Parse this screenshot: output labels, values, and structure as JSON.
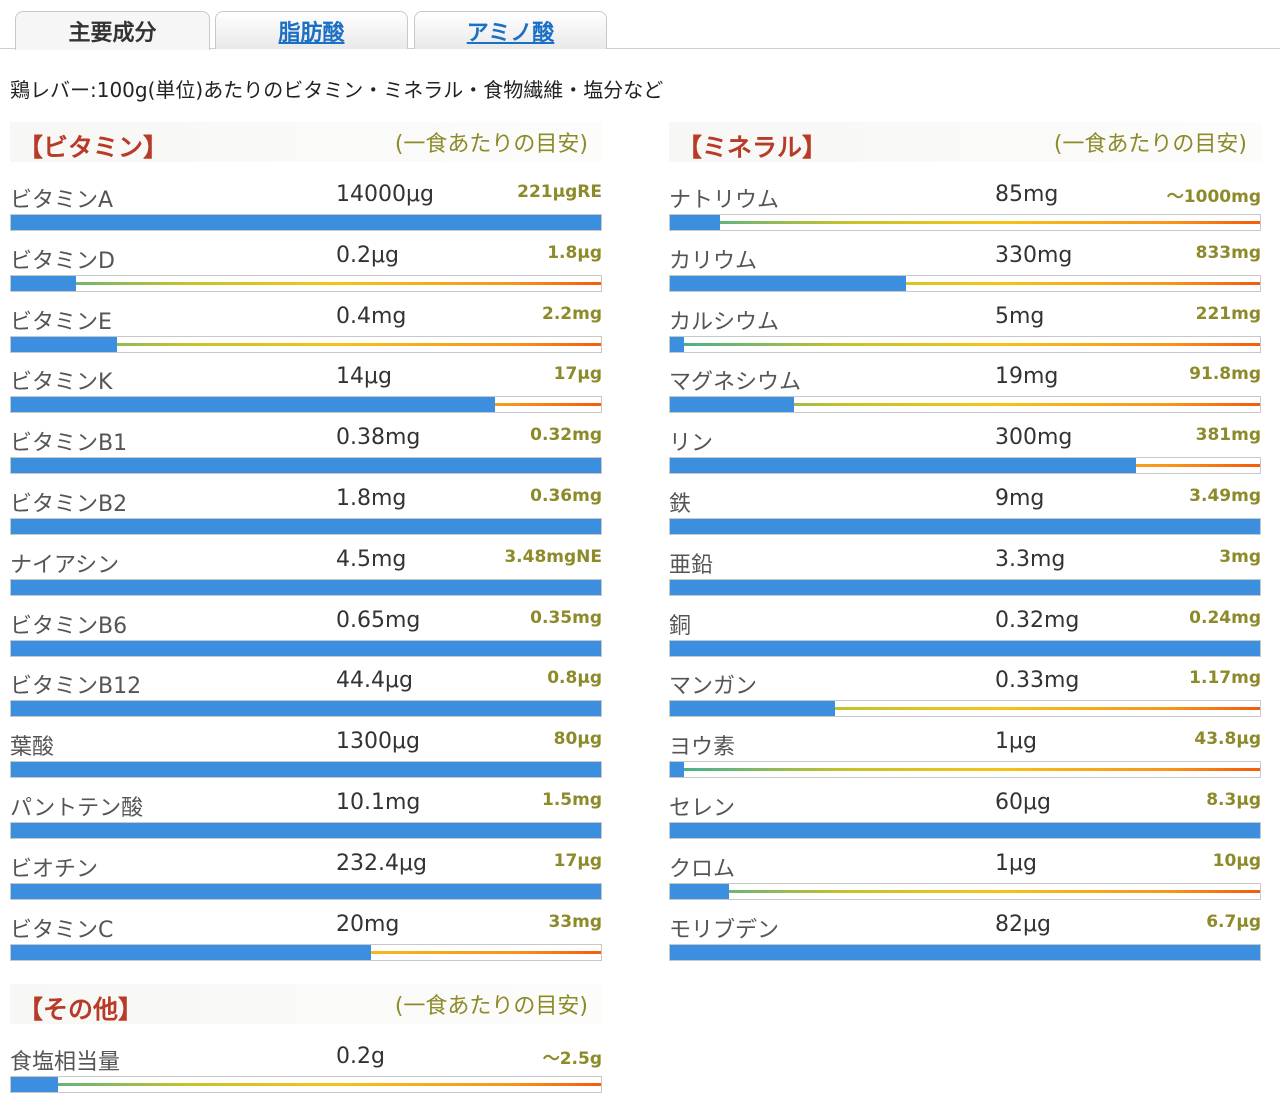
{
  "tabs": [
    {
      "label": "主要成分",
      "active": true
    },
    {
      "label": "脂肪酸",
      "active": false
    },
    {
      "label": "アミノ酸",
      "active": false
    }
  ],
  "intro": "鶏レバー:100g(単位)あたりのビタミン・ミネラル・食物繊維・塩分など",
  "sections": {
    "vitamin": {
      "title": "【ビタミン】",
      "note": "(一食あたりの目安)",
      "items": [
        {
          "name": "ビタミンA",
          "amount": "14000μg",
          "ref": "221μgRE",
          "fill": 1.0
        },
        {
          "name": "ビタミンD",
          "amount": "0.2μg",
          "ref": "1.8μg",
          "fill": 0.11
        },
        {
          "name": "ビタミンE",
          "amount": "0.4mg",
          "ref": "2.2mg",
          "fill": 0.18
        },
        {
          "name": "ビタミンK",
          "amount": "14μg",
          "ref": "17μg",
          "fill": 0.82
        },
        {
          "name": "ビタミンB1",
          "amount": "0.38mg",
          "ref": "0.32mg",
          "fill": 1.0
        },
        {
          "name": "ビタミンB2",
          "amount": "1.8mg",
          "ref": "0.36mg",
          "fill": 1.0
        },
        {
          "name": "ナイアシン",
          "amount": "4.5mg",
          "ref": "3.48mgNE",
          "fill": 1.0
        },
        {
          "name": "ビタミンB6",
          "amount": "0.65mg",
          "ref": "0.35mg",
          "fill": 1.0
        },
        {
          "name": "ビタミンB12",
          "amount": "44.4μg",
          "ref": "0.8μg",
          "fill": 1.0
        },
        {
          "name": "葉酸",
          "amount": "1300μg",
          "ref": "80μg",
          "fill": 1.0
        },
        {
          "name": "パントテン酸",
          "amount": "10.1mg",
          "ref": "1.5mg",
          "fill": 1.0
        },
        {
          "name": "ビオチン",
          "amount": "232.4μg",
          "ref": "17μg",
          "fill": 1.0
        },
        {
          "name": "ビタミンC",
          "amount": "20mg",
          "ref": "33mg",
          "fill": 0.61
        }
      ]
    },
    "mineral": {
      "title": "【ミネラル】",
      "note": "(一食あたりの目安)",
      "items": [
        {
          "name": "ナトリウム",
          "amount": "85mg",
          "ref": "〜1000mg",
          "fill": 0.085
        },
        {
          "name": "カリウム",
          "amount": "330mg",
          "ref": "833mg",
          "fill": 0.4
        },
        {
          "name": "カルシウム",
          "amount": "5mg",
          "ref": "221mg",
          "fill": 0.023
        },
        {
          "name": "マグネシウム",
          "amount": "19mg",
          "ref": "91.8mg",
          "fill": 0.21
        },
        {
          "name": "リン",
          "amount": "300mg",
          "ref": "381mg",
          "fill": 0.79
        },
        {
          "name": "鉄",
          "amount": "9mg",
          "ref": "3.49mg",
          "fill": 1.0
        },
        {
          "name": "亜鉛",
          "amount": "3.3mg",
          "ref": "3mg",
          "fill": 1.0
        },
        {
          "name": "銅",
          "amount": "0.32mg",
          "ref": "0.24mg",
          "fill": 1.0
        },
        {
          "name": "マンガン",
          "amount": "0.33mg",
          "ref": "1.17mg",
          "fill": 0.28
        },
        {
          "name": "ヨウ素",
          "amount": "1μg",
          "ref": "43.8μg",
          "fill": 0.023
        },
        {
          "name": "セレン",
          "amount": "60μg",
          "ref": "8.3μg",
          "fill": 1.0
        },
        {
          "name": "クロム",
          "amount": "1μg",
          "ref": "10μg",
          "fill": 0.1
        },
        {
          "name": "モリブデン",
          "amount": "82μg",
          "ref": "6.7μg",
          "fill": 1.0
        }
      ]
    },
    "other": {
      "title": "【その他】",
      "note": "(一食あたりの目安)",
      "items": [
        {
          "name": "食塩相当量",
          "amount": "0.2g",
          "ref": "〜2.5g",
          "fill": 0.08
        }
      ]
    }
  },
  "colors": {
    "fill": "#3b8fde",
    "title": "#b83b27",
    "note": "#8d8a2a",
    "link": "#1b6fc4"
  }
}
